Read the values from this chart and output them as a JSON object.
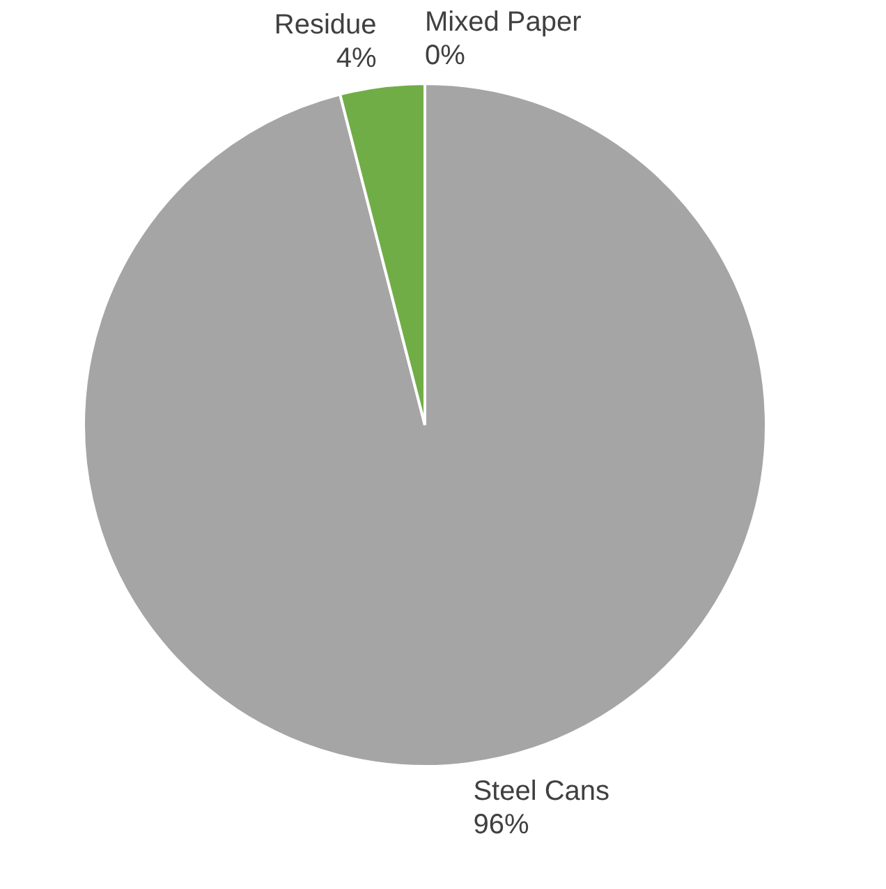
{
  "chart_data": {
    "type": "pie",
    "categories": [
      "Steel Cans",
      "Residue",
      "Mixed Paper"
    ],
    "values": [
      96,
      4,
      0
    ],
    "colors": [
      "#a5a5a5",
      "#70ad47",
      "#4472c4"
    ],
    "value_labels": [
      "96%",
      "4%",
      "0%"
    ]
  }
}
